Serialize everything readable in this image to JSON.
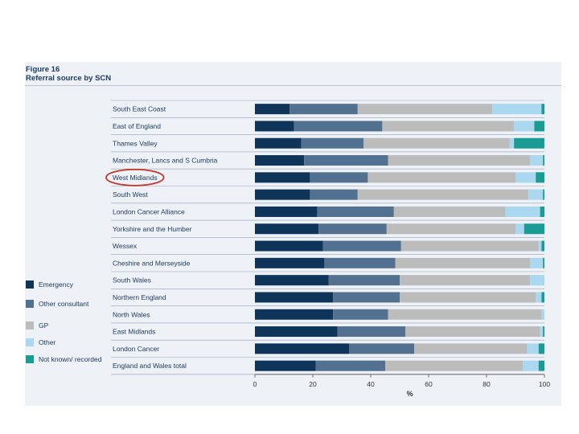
{
  "figure": {
    "title": "Figure 16",
    "subtitle": "Referral source by SCN"
  },
  "highlight": {
    "category": "West Midlands",
    "color": "#c0392b"
  },
  "chart_data": {
    "type": "bar",
    "orientation": "horizontal",
    "stacked": true,
    "categories": [
      "South East Coast",
      "East of England",
      "Thames Valley",
      "Manchester, Lancs and S Cumbria",
      "West Midlands",
      "South West",
      "London Cancer Alliance",
      "Yorkshire and the Humber",
      "Wessex",
      "Cheshire and Merseyside",
      "South Wales",
      "Northern England",
      "North Wales",
      "East Midlands",
      "London Cancer",
      "England and Wales total"
    ],
    "series": [
      {
        "name": "Emergency",
        "color": "#0e3559",
        "values": [
          12,
          13.5,
          16,
          17,
          19,
          19,
          21.5,
          22,
          23.5,
          24,
          25.5,
          27,
          27,
          28.5,
          32.5,
          21
        ]
      },
      {
        "name": "Other consultant",
        "color": "#52708f",
        "values": [
          23.5,
          30.5,
          21.5,
          29,
          20,
          16.5,
          26.5,
          23.5,
          27,
          24.5,
          24.5,
          23,
          19,
          23.5,
          22.5,
          24
        ]
      },
      {
        "name": "GP",
        "color": "#bcbcbc",
        "values": [
          46.5,
          45.5,
          50.5,
          49,
          51,
          59,
          38.5,
          44.5,
          47.5,
          46.5,
          45,
          47,
          53,
          46.5,
          39,
          47.5
        ]
      },
      {
        "name": "Other",
        "color": "#a9d8f0",
        "values": [
          17,
          7,
          1.5,
          4.5,
          7,
          5,
          12,
          3,
          1,
          4.5,
          5,
          2,
          1,
          1,
          4,
          5.5
        ]
      },
      {
        "name": "Not known/ recorded",
        "color": "#1a9b94",
        "values": [
          1,
          3.5,
          10.5,
          0.5,
          3,
          0.5,
          1.5,
          7,
          1,
          0.5,
          0,
          1,
          0,
          0.5,
          2,
          2
        ]
      }
    ],
    "xticks": [
      0,
      20,
      40,
      60,
      80,
      100
    ],
    "xlim": [
      0,
      100
    ],
    "xlabel": "%",
    "ylabel": "",
    "legend": "left",
    "grid": false
  }
}
